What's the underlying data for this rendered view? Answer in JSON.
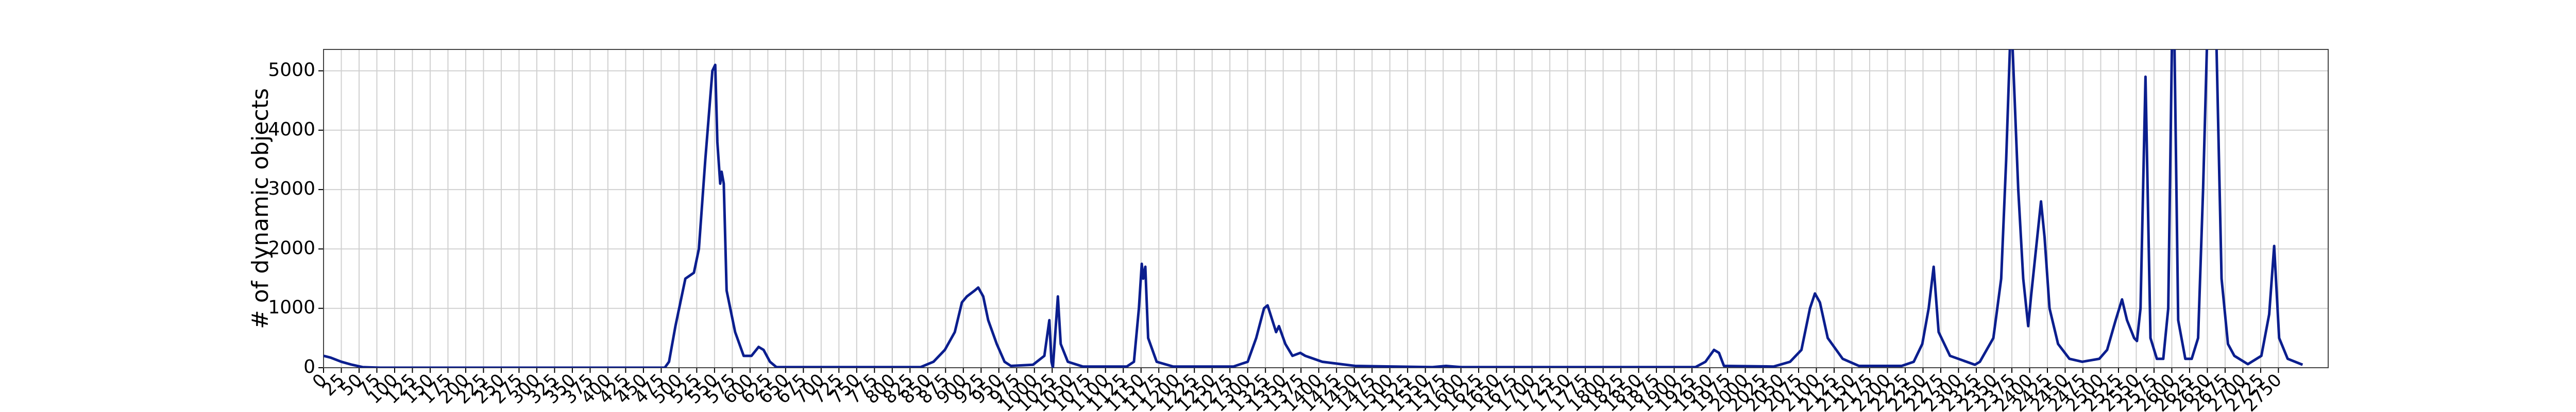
{
  "chart_data": {
    "type": "line",
    "y_label": "# of dynamic objects",
    "color": "#0b1e8e",
    "grid": true,
    "xlim": [
      0,
      2820
    ],
    "ylim": [
      0,
      5360
    ],
    "xticks": [
      0,
      25,
      50,
      75,
      100,
      125,
      150,
      175,
      200,
      225,
      250,
      275,
      300,
      325,
      350,
      375,
      400,
      425,
      450,
      475,
      500,
      525,
      550,
      575,
      600,
      625,
      650,
      675,
      700,
      725,
      750,
      775,
      800,
      825,
      850,
      875,
      900,
      925,
      950,
      975,
      1000,
      1025,
      1050,
      1075,
      1100,
      1125,
      1150,
      1175,
      1200,
      1225,
      1250,
      1275,
      1300,
      1325,
      1350,
      1375,
      1400,
      1425,
      1450,
      1475,
      1500,
      1525,
      1550,
      1575,
      1600,
      1625,
      1650,
      1675,
      1700,
      1725,
      1750,
      1775,
      1800,
      1825,
      1850,
      1875,
      1900,
      1925,
      1950,
      1975,
      2000,
      2025,
      2050,
      2075,
      2100,
      2125,
      2150,
      2175,
      2200,
      2225,
      2250,
      2275,
      2300,
      2325,
      2350,
      2375,
      2400,
      2425,
      2450,
      2475,
      2500,
      2525,
      2550,
      2575,
      2600,
      2625,
      2650,
      2675,
      2700,
      2725,
      2750
    ],
    "yticks": [
      0,
      1000,
      2000,
      3000,
      4000,
      5000
    ],
    "x": [
      0,
      10,
      25,
      40,
      55,
      80,
      480,
      486,
      495,
      509,
      521,
      528,
      537,
      547,
      551,
      554,
      558,
      560,
      563,
      567,
      579,
      591,
      602,
      612,
      619,
      628,
      637,
      840,
      858,
      874,
      888,
      898,
      905,
      916,
      921,
      928,
      935,
      947,
      958,
      967,
      998,
      1014,
      1021,
      1024,
      1026,
      1033,
      1037,
      1047,
      1068,
      1130,
      1140,
      1147,
      1151,
      1153,
      1156,
      1160,
      1172,
      1195,
      1280,
      1300,
      1312,
      1323,
      1328,
      1340,
      1344,
      1353,
      1363,
      1374,
      1381,
      1405,
      1451,
      1560,
      1579,
      1600,
      1930,
      1944,
      1956,
      1963,
      1970,
      2040,
      2063,
      2079,
      2091,
      2098,
      2105,
      2116,
      2137,
      2160,
      2220,
      2237,
      2249,
      2258,
      2265,
      2272,
      2288,
      2323,
      2330,
      2349,
      2360,
      2367,
      2374,
      2384,
      2391,
      2398,
      2402,
      2409,
      2416,
      2421,
      2428,
      2440,
      2456,
      2474,
      2498,
      2509,
      2521,
      2530,
      2537,
      2547,
      2551,
      2556,
      2563,
      2570,
      2579,
      2588,
      2595,
      2602,
      2609,
      2619,
      2628,
      2637,
      2644,
      2653,
      2660,
      2670,
      2679,
      2688,
      2707,
      2726,
      2737,
      2744,
      2751,
      2763,
      2784
    ],
    "values": [
      200,
      170,
      100,
      50,
      10,
      0,
      0,
      100,
      700,
      1500,
      1600,
      2000,
      3500,
      5000,
      5100,
      3800,
      3100,
      3300,
      3100,
      1300,
      600,
      200,
      200,
      350,
      300,
      100,
      10,
      10,
      100,
      300,
      600,
      1100,
      1200,
      1300,
      1350,
      1200,
      800,
      400,
      100,
      30,
      50,
      200,
      800,
      100,
      0,
      1200,
      400,
      100,
      20,
      20,
      100,
      1000,
      1750,
      1500,
      1700,
      500,
      100,
      20,
      20,
      100,
      500,
      1000,
      1050,
      600,
      700,
      400,
      200,
      250,
      200,
      100,
      30,
      10,
      30,
      10,
      10,
      100,
      300,
      250,
      30,
      20,
      100,
      300,
      1000,
      1250,
      1100,
      500,
      150,
      30,
      30,
      100,
      400,
      1000,
      1700,
      600,
      200,
      50,
      100,
      500,
      1500,
      3500,
      6000,
      3000,
      1500,
      700,
      1200,
      2000,
      2800,
      2200,
      1000,
      400,
      150,
      100,
      150,
      300,
      800,
      1150,
      800,
      500,
      450,
      1000,
      4900,
      500,
      150,
      150,
      1000,
      7000,
      800,
      150,
      150,
      500,
      3000,
      7000,
      7000,
      1500,
      400,
      200,
      60,
      200,
      900,
      2050,
      500,
      150,
      50
    ]
  }
}
